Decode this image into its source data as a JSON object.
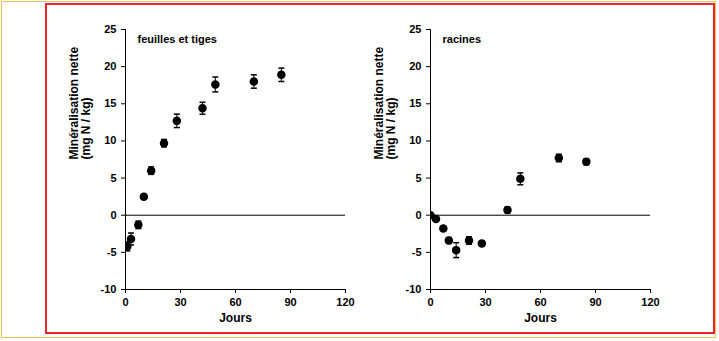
{
  "chart_data": [
    {
      "type": "scatter",
      "title": "feuilles et tiges",
      "x_label": "Jours",
      "y_label": "Minéralisation nette\n(mg N / kg)",
      "x": [
        1,
        3,
        7,
        10,
        14,
        21,
        28,
        42,
        49,
        70,
        85
      ],
      "values": [
        -4.2,
        -3.2,
        -1.3,
        2.5,
        6.0,
        9.7,
        12.7,
        14.4,
        17.6,
        18.0,
        18.9
      ],
      "errors": [
        0.6,
        0.8,
        0.5,
        0.3,
        0.5,
        0.5,
        0.9,
        0.8,
        1.0,
        0.9,
        0.9
      ],
      "color": "#000000",
      "marker": "circle",
      "xlim": [
        0,
        120
      ],
      "ylim": [
        -10,
        25
      ],
      "xticks": [
        0,
        30,
        60,
        90,
        120
      ],
      "yticks": [
        -10,
        -5,
        0,
        5,
        10,
        15,
        20,
        25
      ]
    },
    {
      "type": "scatter",
      "title": "racines",
      "x_label": "Jours",
      "y_label": "Minéralisation nette\n(mg N / kg)",
      "x": [
        0,
        3,
        7,
        10,
        14,
        21,
        28,
        42,
        49,
        70,
        85
      ],
      "values": [
        0.0,
        -0.5,
        -1.8,
        -3.4,
        -4.7,
        -3.4,
        -3.8,
        0.7,
        4.9,
        7.7,
        7.2
      ],
      "errors": [
        0.2,
        0.3,
        0.3,
        0.4,
        1.0,
        0.5,
        0.3,
        0.4,
        0.8,
        0.5,
        0.4
      ],
      "color": "#000000",
      "marker": "circle",
      "xlim": [
        0,
        120
      ],
      "ylim": [
        -10,
        25
      ],
      "xticks": [
        0,
        30,
        60,
        90,
        120
      ],
      "yticks": [
        -10,
        -5,
        0,
        5,
        10,
        15,
        20,
        25
      ]
    }
  ]
}
